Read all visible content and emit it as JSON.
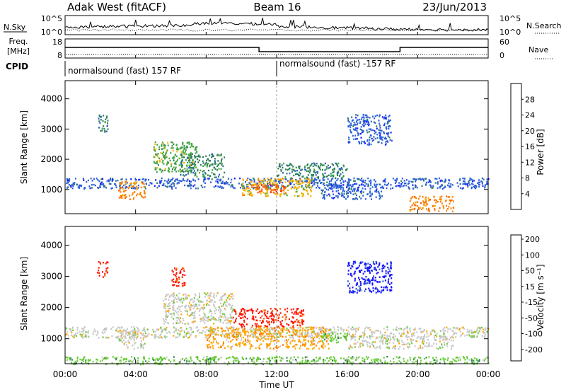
{
  "header": {
    "left_title": "Adak West (fitACF)",
    "center_title": "Beam 16",
    "right_title": "23/Jun/2013"
  },
  "panels": {
    "nsky_label": "N.Sky",
    "nsky_ticks": [
      "10^5",
      "10^0"
    ],
    "nsearch_label": "N.Search",
    "nsearch_ticks": [
      "10^5",
      "10^0"
    ],
    "freq_label_top": "Freq.",
    "freq_label_bottom": "[MHz]",
    "freq_ticks": [
      "18",
      "8"
    ],
    "nave_label": "Nave",
    "nave_ticks": [
      "60",
      "0"
    ],
    "cpid_label": "CPID",
    "cpid_segments": [
      {
        "text": "normalsound (fast) 157 RF",
        "start_hour": 0,
        "end_hour": 12
      },
      {
        "text": "normalsound (fast) -157 RF",
        "start_hour": 12,
        "end_hour": 24
      }
    ]
  },
  "chart_data": [
    {
      "type": "heatmap",
      "name": "power",
      "ylabel": "Slant Range [km]",
      "y_ticks": [
        "1000",
        "2000",
        "3000",
        "4000"
      ],
      "ylim": [
        200,
        4600
      ],
      "xlim": [
        0,
        24
      ],
      "colorbar_label": "Power [dB]",
      "colorbar_ticks": [
        "4",
        "8",
        "12",
        "16",
        "20",
        "24",
        "28"
      ],
      "colors": [
        "#1414ff",
        "#2a5fd8",
        "#2e7f5a",
        "#43a743",
        "#f0b400",
        "#ff8000",
        "#ff5a00",
        "#ff1400"
      ],
      "regions": [
        {
          "x0": 0.0,
          "x1": 24.0,
          "y0": 1050,
          "y1": 1400,
          "level": 1
        },
        {
          "x0": 3.0,
          "x1": 4.5,
          "y0": 700,
          "y1": 1300,
          "level": 5
        },
        {
          "x0": 5.0,
          "x1": 7.5,
          "y0": 1600,
          "y1": 2600,
          "level": 3
        },
        {
          "x0": 6.5,
          "x1": 9.0,
          "y0": 1400,
          "y1": 2200,
          "level": 2
        },
        {
          "x0": 10.0,
          "x1": 14.0,
          "y0": 800,
          "y1": 1400,
          "level": 4
        },
        {
          "x0": 10.5,
          "x1": 12.5,
          "y0": 900,
          "y1": 1200,
          "level": 6
        },
        {
          "x0": 12.0,
          "x1": 16.0,
          "y0": 1400,
          "y1": 1900,
          "level": 2
        },
        {
          "x0": 14.5,
          "x1": 18.0,
          "y0": 700,
          "y1": 1200,
          "level": 1
        },
        {
          "x0": 19.5,
          "x1": 22.0,
          "y0": 300,
          "y1": 800,
          "level": 5
        },
        {
          "x0": 1.8,
          "x1": 2.4,
          "y0": 2900,
          "y1": 3500,
          "level": 2
        },
        {
          "x0": 16.0,
          "x1": 18.5,
          "y0": 2500,
          "y1": 3500,
          "level": 1
        }
      ]
    },
    {
      "type": "heatmap",
      "name": "velocity",
      "ylabel": "Slant Range [km]",
      "y_ticks": [
        "1000",
        "2000",
        "3000",
        "4000"
      ],
      "ylim": [
        200,
        4600
      ],
      "xlim": [
        0,
        24
      ],
      "colorbar_label": "Velocity [m s⁻¹]",
      "colorbar_ticks": [
        "200",
        "100",
        "50",
        "15",
        "-15",
        "-50",
        "-100",
        "-200"
      ],
      "colors": [
        "#1414ff",
        "#2a5fd8",
        "#2e7f5a",
        "#66cc33",
        "#c8c8c8",
        "#ffa500",
        "#ff6a00",
        "#ff1400"
      ],
      "regions": [
        {
          "x0": 0.0,
          "x1": 24.0,
          "y0": 1050,
          "y1": 1400,
          "level": 4
        },
        {
          "x0": 3.0,
          "x1": 4.5,
          "y0": 700,
          "y1": 1300,
          "level": 4
        },
        {
          "x0": 5.5,
          "x1": 9.5,
          "y0": 1500,
          "y1": 2500,
          "level": 4
        },
        {
          "x0": 6.0,
          "x1": 6.8,
          "y0": 2700,
          "y1": 3300,
          "level": 7
        },
        {
          "x0": 9.5,
          "x1": 13.5,
          "y0": 1400,
          "y1": 2000,
          "level": 7
        },
        {
          "x0": 8.0,
          "x1": 15.0,
          "y0": 700,
          "y1": 1400,
          "level": 5
        },
        {
          "x0": 14.5,
          "x1": 16.0,
          "y0": 900,
          "y1": 1200,
          "level": 3
        },
        {
          "x0": 16.0,
          "x1": 22.0,
          "y0": 700,
          "y1": 1100,
          "level": 4
        },
        {
          "x0": 0.0,
          "x1": 24.0,
          "y0": 200,
          "y1": 450,
          "level": 3
        },
        {
          "x0": 1.8,
          "x1": 2.4,
          "y0": 3000,
          "y1": 3500,
          "level": 7
        },
        {
          "x0": 16.0,
          "x1": 18.5,
          "y0": 2500,
          "y1": 3500,
          "level": 0
        }
      ]
    }
  ],
  "x_axis": {
    "ticks": [
      "00:00",
      "04:00",
      "08:00",
      "12:00",
      "16:00",
      "20:00",
      "00:00"
    ],
    "label": "Time UT"
  }
}
